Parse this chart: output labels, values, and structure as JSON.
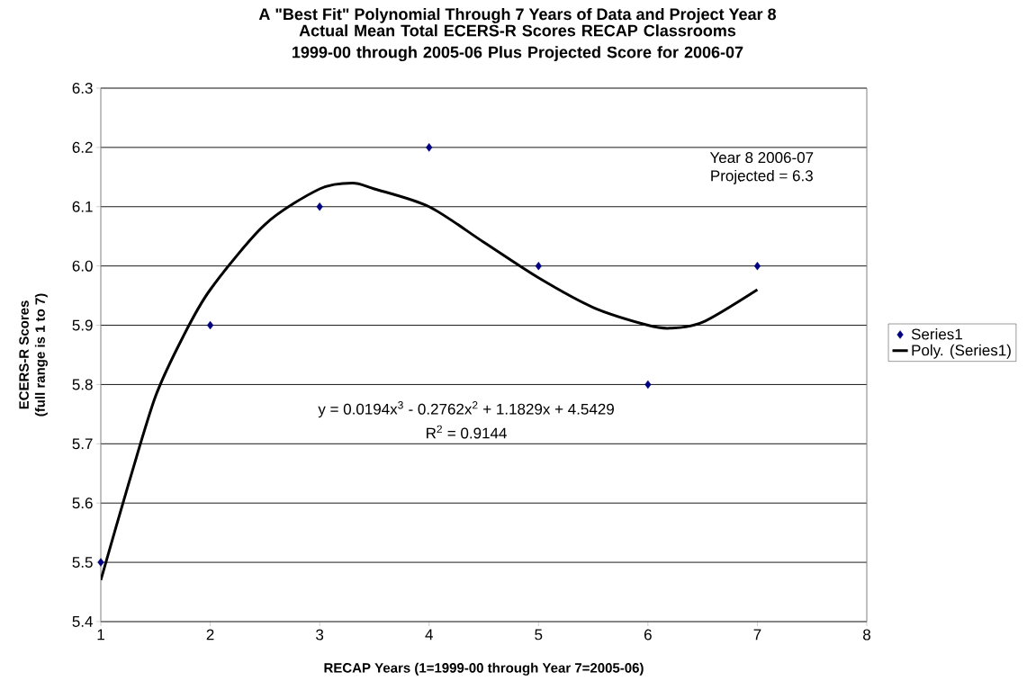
{
  "chart_data": {
    "type": "scatter",
    "title": "A \"Best Fit\" Polynomial Through 7 Years of Data and Project Year 8",
    "subtitle": "Actual Mean Total ECERS-R Scores RECAP Classrooms 1999-00 through 2005-06 Plus Projected Score for 2006-07",
    "xlabel": "RECAP Years (1=1999-00 through Year 7=2005-06)",
    "ylabel": "ECERS-R Scores (full range is 1 to 7)",
    "x": [
      1,
      2,
      3,
      4,
      5,
      6,
      7
    ],
    "series": [
      {
        "name": "Series1",
        "color": "#000080",
        "marker": "diamond",
        "values": [
          5.5,
          5.9,
          6.1,
          6.2,
          6.0,
          5.8,
          6.0
        ]
      },
      {
        "name": "Poly. (Series1)",
        "type": "line",
        "color": "#000000",
        "marker": "none",
        "x": [
          1,
          1.25,
          1.5,
          1.75,
          2,
          2.5,
          3,
          3.3,
          3.5,
          4,
          4.5,
          5,
          5.5,
          6,
          6.2,
          6.5,
          7
        ],
        "values": [
          5.47,
          5.63,
          5.78,
          5.88,
          5.96,
          6.07,
          6.13,
          6.14,
          6.13,
          6.1,
          6.04,
          5.98,
          5.93,
          5.9,
          5.895,
          5.905,
          5.96
        ]
      }
    ],
    "annotations": [
      "y = 0.0194x$^{3}$ - 0.2762x$^{2}$ + 1.1829x + 4.5429",
      "R$^{2}$ = 0.9144",
      "Year 8 2006-07",
      "Projected = 6.3"
    ],
    "xlim": [
      1,
      8
    ],
    "xticks": [
      1,
      2,
      3,
      4,
      5,
      6,
      7,
      8
    ],
    "ylim": [
      5.4,
      6.3
    ],
    "yticks": [
      {
        "value": 5.4,
        "label": "5.4"
      },
      {
        "value": 5.5,
        "label": "5.5"
      },
      {
        "value": 5.6,
        "label": "5.6"
      },
      {
        "value": 5.7,
        "label": "5.7"
      },
      {
        "value": 5.8,
        "label": "5.8"
      },
      {
        "value": 5.9,
        "label": "5.9"
      },
      {
        "value": 6.0,
        "label": "6.0"
      },
      {
        "value": 6.1,
        "label": "6.1"
      },
      {
        "value": 6.2,
        "label": "6.2"
      },
      {
        "value": 6.3,
        "label": "6.3"
      }
    ],
    "grid": "y",
    "legend": "right"
  }
}
